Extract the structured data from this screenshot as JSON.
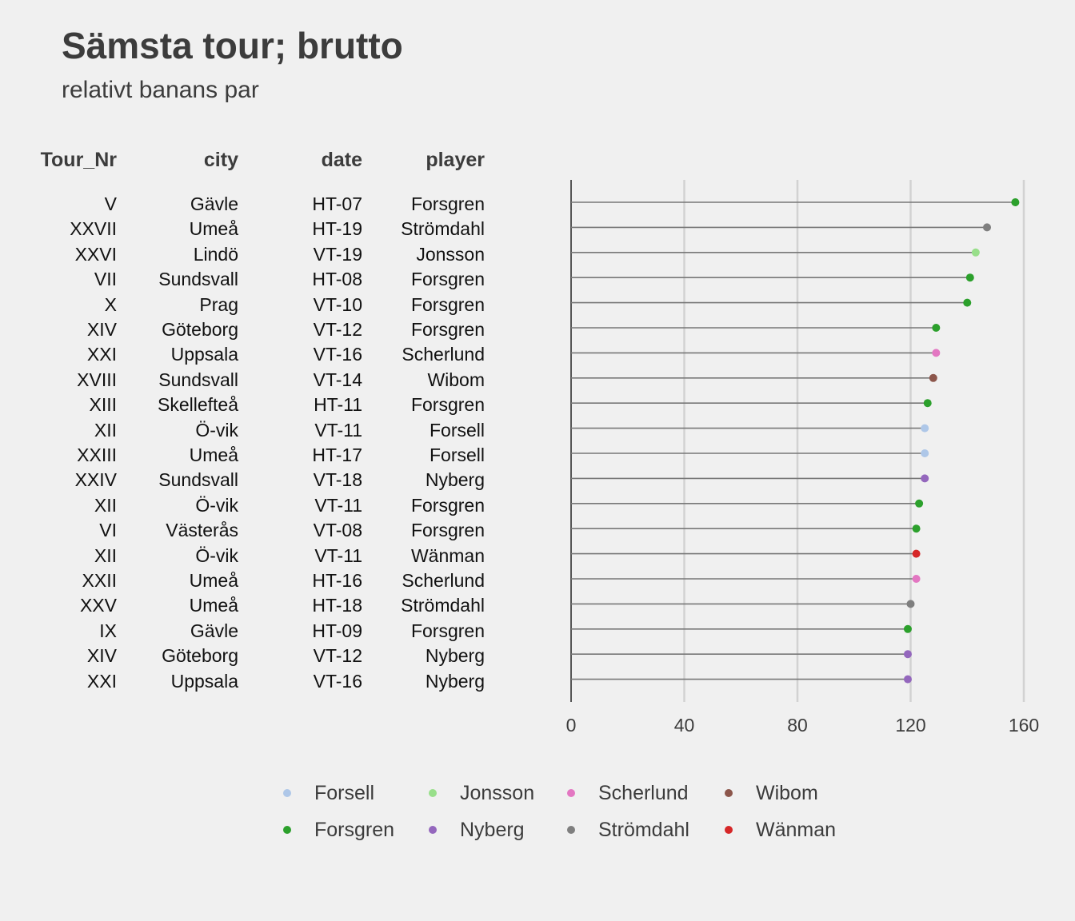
{
  "title": "Sämsta tour; brutto",
  "subtitle": "relativt banans par",
  "table": {
    "headers": [
      "Tour_Nr",
      "city",
      "date",
      "player"
    ]
  },
  "colors": {
    "Forsell": "#aec7e8",
    "Forsgren": "#2ca02c",
    "Jonsson": "#98df8a",
    "Nyberg": "#9467bd",
    "Scherlund": "#e377c2",
    "Strömdahl": "#7f7f7f",
    "Wibom": "#8c564b",
    "Wänman": "#d62728"
  },
  "legend": {
    "items": [
      "Forsell",
      "Forsgren",
      "Jonsson",
      "Nyberg",
      "Scherlund",
      "Strömdahl",
      "Wibom",
      "Wänman"
    ]
  },
  "chart_data": {
    "type": "lollipop",
    "title": "Sämsta tour; brutto",
    "subtitle": "relativt banans par",
    "xlim": [
      0,
      160
    ],
    "x_ticks": [
      0,
      40,
      80,
      120,
      160
    ],
    "grid": "vertical",
    "legend_position": "bottom",
    "rows": [
      {
        "tour": "V",
        "city": "Gävle",
        "date": "HT-07",
        "player": "Forsgren",
        "value": 157
      },
      {
        "tour": "XXVII",
        "city": "Umeå",
        "date": "HT-19",
        "player": "Strömdahl",
        "value": 147
      },
      {
        "tour": "XXVI",
        "city": "Lindö",
        "date": "VT-19",
        "player": "Jonsson",
        "value": 143
      },
      {
        "tour": "VII",
        "city": "Sundsvall",
        "date": "HT-08",
        "player": "Forsgren",
        "value": 141
      },
      {
        "tour": "X",
        "city": "Prag",
        "date": "VT-10",
        "player": "Forsgren",
        "value": 140
      },
      {
        "tour": "XIV",
        "city": "Göteborg",
        "date": "VT-12",
        "player": "Forsgren",
        "value": 129
      },
      {
        "tour": "XXI",
        "city": "Uppsala",
        "date": "VT-16",
        "player": "Scherlund",
        "value": 129
      },
      {
        "tour": "XVIII",
        "city": "Sundsvall",
        "date": "VT-14",
        "player": "Wibom",
        "value": 128
      },
      {
        "tour": "XIII",
        "city": "Skellefteå",
        "date": "HT-11",
        "player": "Forsgren",
        "value": 126
      },
      {
        "tour": "XII",
        "city": "Ö-vik",
        "date": "VT-11",
        "player": "Forsell",
        "value": 125
      },
      {
        "tour": "XXIII",
        "city": "Umeå",
        "date": "HT-17",
        "player": "Forsell",
        "value": 125
      },
      {
        "tour": "XXIV",
        "city": "Sundsvall",
        "date": "VT-18",
        "player": "Nyberg",
        "value": 125
      },
      {
        "tour": "XII",
        "city": "Ö-vik",
        "date": "VT-11",
        "player": "Forsgren",
        "value": 123
      },
      {
        "tour": "VI",
        "city": "Västerås",
        "date": "VT-08",
        "player": "Forsgren",
        "value": 122
      },
      {
        "tour": "XII",
        "city": "Ö-vik",
        "date": "VT-11",
        "player": "Wänman",
        "value": 122
      },
      {
        "tour": "XXII",
        "city": "Umeå",
        "date": "HT-16",
        "player": "Scherlund",
        "value": 122
      },
      {
        "tour": "XXV",
        "city": "Umeå",
        "date": "HT-18",
        "player": "Strömdahl",
        "value": 120
      },
      {
        "tour": "IX",
        "city": "Gävle",
        "date": "HT-09",
        "player": "Forsgren",
        "value": 119
      },
      {
        "tour": "XIV",
        "city": "Göteborg",
        "date": "VT-12",
        "player": "Nyberg",
        "value": 119
      },
      {
        "tour": "XXI",
        "city": "Uppsala",
        "date": "VT-16",
        "player": "Nyberg",
        "value": 119
      }
    ]
  }
}
